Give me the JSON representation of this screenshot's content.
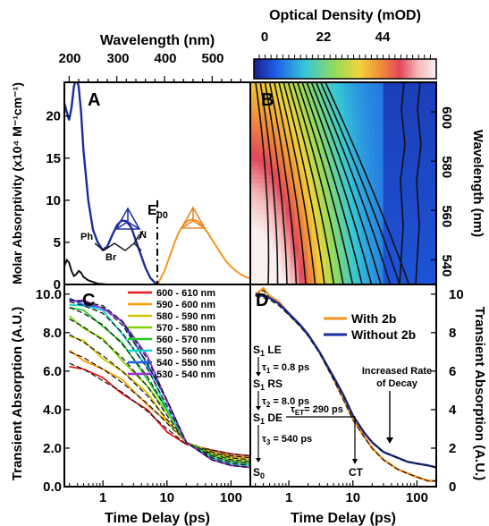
{
  "figure": {
    "panel_labels": [
      "A",
      "B",
      "C",
      "D"
    ],
    "top_axis": {
      "label": "Wavelength (nm)",
      "ticks": [
        "200",
        "300",
        "400",
        "500"
      ],
      "range": [
        190,
        580
      ]
    },
    "colorbar": {
      "label": "Optical Density (mOD)",
      "ticks": [
        "0",
        "22",
        "44"
      ],
      "range": [
        0,
        66
      ]
    },
    "panel_a": {
      "ylabel": "Molar Absorptivity (x10⁴ M⁻¹cm⁻¹)",
      "yticks": [
        "0",
        "5",
        "10",
        "15",
        "20"
      ],
      "e00_label": "E",
      "e00_sub": "00",
      "e00_wavelength": 385,
      "molecule_labels": {
        "ph": "Ph",
        "br": "Br",
        "n": "N"
      }
    },
    "panel_b": {
      "ylabel": "Wavelength (nm)",
      "yticks": [
        "540",
        "560",
        "580",
        "600"
      ]
    },
    "panel_c": {
      "ylabel": "Transient Absorption (A.U.)",
      "xlabel": "Time Delay (ps)",
      "yticks": [
        "0.0",
        "2.0",
        "4.0",
        "6.0",
        "8.0",
        "10.0"
      ],
      "xticks": [
        "1",
        "10",
        "100"
      ],
      "legend": [
        {
          "label": "600 - 610 nm",
          "color": "#e41a1c"
        },
        {
          "label": "590 - 600 nm",
          "color": "#ff9900"
        },
        {
          "label": "580 - 590 nm",
          "color": "#d4c200"
        },
        {
          "label": "570 - 580 nm",
          "color": "#7fd400"
        },
        {
          "label": "560 - 570 nm",
          "color": "#22cc22"
        },
        {
          "label": "550 - 560 nm",
          "color": "#18d6c8"
        },
        {
          "label": "540 - 550 nm",
          "color": "#1f5ee6"
        },
        {
          "label": "530 - 540 nm",
          "color": "#9b30d9"
        }
      ]
    },
    "panel_d": {
      "ylabel": "Transient Absorption (A.U.)",
      "xlabel": "Time Delay (ps)",
      "yticks": [
        "0",
        "2",
        "4",
        "6",
        "8",
        "10"
      ],
      "xticks": [
        "1",
        "10",
        "100"
      ],
      "legend": [
        {
          "label": "With 2b",
          "color": "#f7941d"
        },
        {
          "label": "Without 2b",
          "color": "#1a2c9c"
        }
      ],
      "scheme": {
        "s1": "S",
        "sub1": "1",
        "le": " LE",
        "rs": " RS",
        "de": " DE",
        "s0": "S",
        "sub0": "0",
        "tau1": "τ",
        "tau1_sub": "1",
        "tau1_val": " = 0.8 ps",
        "tau2": "τ",
        "tau2_sub": "2",
        "tau2_val": " = 8.0 ps",
        "tau3": "τ",
        "tau3_sub": "3",
        "tau3_val": " = 540 ps",
        "tau_et": "τ",
        "tau_et_sub": "ET",
        "tau_et_val": "= 290 ps",
        "ct": "CT",
        "increased1": "Increased Rate",
        "increased2": "of Decay"
      }
    }
  },
  "chart_data": [
    {
      "type": "line",
      "panel": "A",
      "xlabel": "Wavelength (nm)",
      "ylabel": "Molar Absorptivity (x10⁴ M⁻¹cm⁻¹)",
      "xlim": [
        190,
        580
      ],
      "ylim": [
        0,
        24
      ],
      "series": [
        {
          "color": "#1a2c9c",
          "x": [
            190,
            200,
            205,
            210,
            215,
            220,
            225,
            230,
            240,
            250,
            260,
            270,
            280,
            290,
            300,
            310,
            320,
            330,
            340,
            350,
            360,
            370,
            380,
            390
          ],
          "y": [
            21.5,
            19.5,
            21,
            23.5,
            24.5,
            23.5,
            20.5,
            16,
            10,
            6.5,
            5,
            4.1,
            4.5,
            5.8,
            7,
            7.6,
            7.5,
            6.8,
            5.2,
            3.6,
            2.0,
            0.8,
            0.2,
            0
          ]
        },
        {
          "color": "#111111",
          "x": [
            190,
            195,
            200,
            205,
            210,
            215,
            220,
            225,
            230,
            240,
            250,
            260,
            270,
            280,
            290,
            300
          ],
          "y": [
            2.2,
            2.9,
            2.6,
            1.6,
            1.0,
            1.2,
            1.6,
            1.4,
            0.9,
            0.5,
            0.3,
            0.1,
            0.05,
            0,
            0,
            0
          ]
        },
        {
          "color": "#f7941d",
          "x": [
            385,
            390,
            400,
            410,
            420,
            430,
            440,
            450,
            460,
            470,
            480,
            490,
            500,
            510,
            520,
            530,
            540,
            550,
            560,
            570,
            580
          ],
          "y": [
            0,
            0.5,
            1.6,
            3.2,
            4.8,
            6.2,
            7.1,
            7.6,
            7.7,
            7.5,
            6.9,
            6.2,
            5.3,
            4.4,
            3.5,
            2.7,
            2.1,
            1.6,
            1.2,
            0.9,
            0.7
          ]
        }
      ]
    },
    {
      "type": "heatmap",
      "panel": "B",
      "xlabel": "Time Delay (ps)",
      "ylabel": "Wavelength (nm)",
      "xlim": [
        0.3,
        200
      ],
      "ylim": [
        530,
        612
      ],
      "zlim": [
        0,
        66
      ]
    },
    {
      "type": "line",
      "panel": "C",
      "xlabel": "Time Delay (ps)",
      "ylabel": "Transient Absorption (A.U.)",
      "xlim": [
        0.25,
        200
      ],
      "ylim": [
        0,
        10.5
      ],
      "series": [
        {
          "name": "600 - 610 nm",
          "x": [
            0.3,
            0.5,
            1,
            2,
            5,
            10,
            20,
            50,
            100,
            200
          ],
          "y": [
            6.4,
            6.1,
            5.5,
            4.9,
            3.9,
            3.0,
            2.2,
            1.9,
            1.7,
            1.6
          ]
        },
        {
          "name": "590 - 600 nm",
          "x": [
            0.3,
            0.5,
            1,
            2,
            5,
            10,
            20,
            50,
            100,
            200
          ],
          "y": [
            7.0,
            6.7,
            6.1,
            5.4,
            4.3,
            3.3,
            2.3,
            1.8,
            1.6,
            1.5
          ]
        },
        {
          "name": "580 - 590 nm",
          "x": [
            0.3,
            0.5,
            1,
            2,
            5,
            10,
            20,
            50,
            100,
            200
          ],
          "y": [
            7.9,
            7.5,
            6.8,
            6.0,
            4.7,
            3.5,
            2.3,
            1.8,
            1.5,
            1.4
          ]
        },
        {
          "name": "570 - 580 nm",
          "x": [
            0.3,
            0.5,
            1,
            2,
            5,
            10,
            20,
            50,
            100,
            200
          ],
          "y": [
            8.7,
            8.3,
            7.6,
            6.7,
            5.2,
            3.7,
            2.3,
            1.7,
            1.4,
            1.3
          ]
        },
        {
          "name": "560 - 570 nm",
          "x": [
            0.3,
            0.5,
            1,
            2,
            5,
            10,
            20,
            50,
            100,
            200
          ],
          "y": [
            9.3,
            9.0,
            8.4,
            7.4,
            5.7,
            4.0,
            2.3,
            1.6,
            1.3,
            1.2
          ]
        },
        {
          "name": "550 - 560 nm",
          "x": [
            0.3,
            0.5,
            1,
            2,
            5,
            10,
            20,
            50,
            100,
            200
          ],
          "y": [
            9.6,
            9.4,
            9.0,
            8.0,
            6.1,
            4.2,
            2.3,
            1.5,
            1.2,
            1.1
          ]
        },
        {
          "name": "540 - 550 nm",
          "x": [
            0.3,
            0.5,
            1,
            2,
            5,
            10,
            20,
            50,
            100,
            200
          ],
          "y": [
            9.7,
            9.6,
            9.3,
            8.4,
            6.4,
            4.4,
            2.3,
            1.4,
            1.1,
            1.0
          ]
        },
        {
          "name": "530 - 540 nm",
          "x": [
            0.3,
            0.5,
            1,
            2,
            5,
            10,
            20,
            50,
            100,
            200
          ],
          "y": [
            9.7,
            9.6,
            9.4,
            8.6,
            6.6,
            4.5,
            2.3,
            1.4,
            1.1,
            1.0
          ]
        }
      ]
    },
    {
      "type": "line",
      "panel": "D",
      "xlabel": "Time Delay (ps)",
      "ylabel": "Transient Absorption (A.U.)",
      "xlim": [
        0.25,
        200
      ],
      "ylim": [
        0,
        10.5
      ],
      "series": [
        {
          "name": "With 2b",
          "x": [
            0.3,
            0.4,
            0.5,
            0.7,
            1,
            1.5,
            2,
            3,
            5,
            7,
            10,
            15,
            20,
            30,
            50,
            70,
            100,
            150,
            200
          ],
          "y": [
            10.0,
            10.3,
            9.9,
            9.6,
            9.0,
            8.4,
            7.9,
            7.0,
            5.6,
            4.6,
            3.5,
            2.6,
            2.0,
            1.4,
            0.9,
            0.7,
            0.5,
            0.3,
            0.3
          ]
        },
        {
          "name": "Without 2b",
          "x": [
            0.3,
            0.4,
            0.5,
            0.7,
            1,
            1.5,
            2,
            3,
            5,
            7,
            10,
            15,
            20,
            30,
            50,
            70,
            100,
            150,
            200
          ],
          "y": [
            10.0,
            9.9,
            9.8,
            9.5,
            9.0,
            8.4,
            7.9,
            7.0,
            5.7,
            4.8,
            3.7,
            2.8,
            2.3,
            1.8,
            1.5,
            1.3,
            1.2,
            1.1,
            1.0
          ]
        }
      ]
    }
  ]
}
